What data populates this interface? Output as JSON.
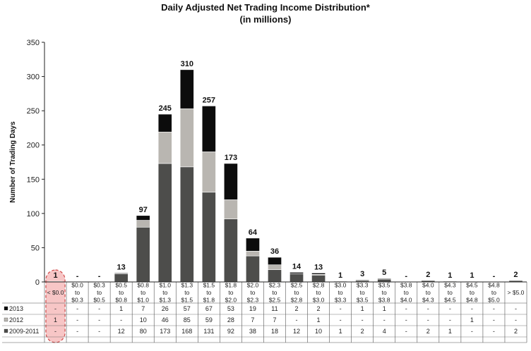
{
  "chart_data": {
    "type": "bar",
    "stacked": true,
    "title": "Daily Adjusted Net Trading Income Distribution*",
    "subtitle": "(in millions)",
    "ylabel": "Number of Trading Days",
    "ylim": [
      0,
      350
    ],
    "yticks": [
      0,
      50,
      100,
      150,
      200,
      250,
      300,
      350
    ],
    "grid": false,
    "highlight_category_index": 0,
    "categories": [
      [
        "< $0.0"
      ],
      [
        "$0.0",
        "to",
        "$0.3"
      ],
      [
        "$0.3",
        "to",
        "$0.5"
      ],
      [
        "$0.5",
        "to",
        "$0.8"
      ],
      [
        "$0.8",
        "to",
        "$1.0"
      ],
      [
        "$1.0",
        "to",
        "$1.3"
      ],
      [
        "$1.3",
        "to",
        "$1.5"
      ],
      [
        "$1.5",
        "to",
        "$1.8"
      ],
      [
        "$1.8",
        "to",
        "$2.0"
      ],
      [
        "$2.0",
        "to",
        "$2.3"
      ],
      [
        "$2.3",
        "to",
        "$2.5"
      ],
      [
        "$2.5",
        "to",
        "$2.8"
      ],
      [
        "$2.8",
        "to",
        "$3.0"
      ],
      [
        "$3.0",
        "to",
        "$3.3"
      ],
      [
        "$3.3",
        "to",
        "$3.5"
      ],
      [
        "$3.5",
        "to",
        "$3.8"
      ],
      [
        "$3.8",
        "to",
        "$4.0"
      ],
      [
        "$4.0",
        "to",
        "$4.3"
      ],
      [
        "$4.3",
        "to",
        "$4.5"
      ],
      [
        "$4.5",
        "to",
        "$4.8"
      ],
      [
        "$4.8",
        "to",
        "$5.0"
      ],
      [
        "> $5.0"
      ]
    ],
    "totals": [
      "1",
      "-",
      "-",
      "13",
      "97",
      "245",
      "310",
      "257",
      "173",
      "64",
      "36",
      "14",
      "13",
      "1",
      "3",
      "5",
      "-",
      "2",
      "1",
      "1",
      "-",
      "2"
    ],
    "series": [
      {
        "name": "2009-2011",
        "color": "#4d4d4b",
        "values": [
          0,
          0,
          0,
          12,
          80,
          173,
          168,
          131,
          92,
          38,
          18,
          12,
          10,
          1,
          2,
          4,
          0,
          2,
          1,
          0,
          0,
          2
        ],
        "cells": [
          "-",
          "-",
          "-",
          "12",
          "80",
          "173",
          "168",
          "131",
          "92",
          "38",
          "18",
          "12",
          "10",
          "1",
          "2",
          "4",
          "-",
          "2",
          "1",
          "-",
          "-",
          "2"
        ]
      },
      {
        "name": "2012",
        "color": "#b9b6b1",
        "values": [
          1,
          0,
          0,
          0,
          10,
          46,
          85,
          59,
          28,
          7,
          7,
          0,
          1,
          0,
          0,
          0,
          0,
          0,
          0,
          1,
          0,
          0
        ],
        "cells": [
          "1",
          "-",
          "-",
          "-",
          "10",
          "46",
          "85",
          "59",
          "28",
          "7",
          "7",
          "-",
          "1",
          "-",
          "-",
          "-",
          "-",
          "-",
          "-",
          "1",
          "-",
          "-"
        ]
      },
      {
        "name": "2013",
        "color": "#0c0c0c",
        "values": [
          0,
          0,
          0,
          1,
          7,
          26,
          57,
          67,
          53,
          19,
          11,
          2,
          2,
          0,
          1,
          1,
          0,
          0,
          0,
          0,
          0,
          0
        ],
        "cells": [
          "-",
          "-",
          "-",
          "1",
          "7",
          "26",
          "57",
          "67",
          "53",
          "19",
          "11",
          "2",
          "2",
          "-",
          "1",
          "1",
          "-",
          "-",
          "-",
          "-",
          "-",
          "-"
        ]
      }
    ],
    "table_row_order": [
      "2013",
      "2012",
      "2009-2011"
    ],
    "colors": {
      "highlight_fill": "#f7c6c6",
      "highlight_stroke": "#d04a4a",
      "axis": "#222222",
      "grid_line": "#555555"
    }
  }
}
